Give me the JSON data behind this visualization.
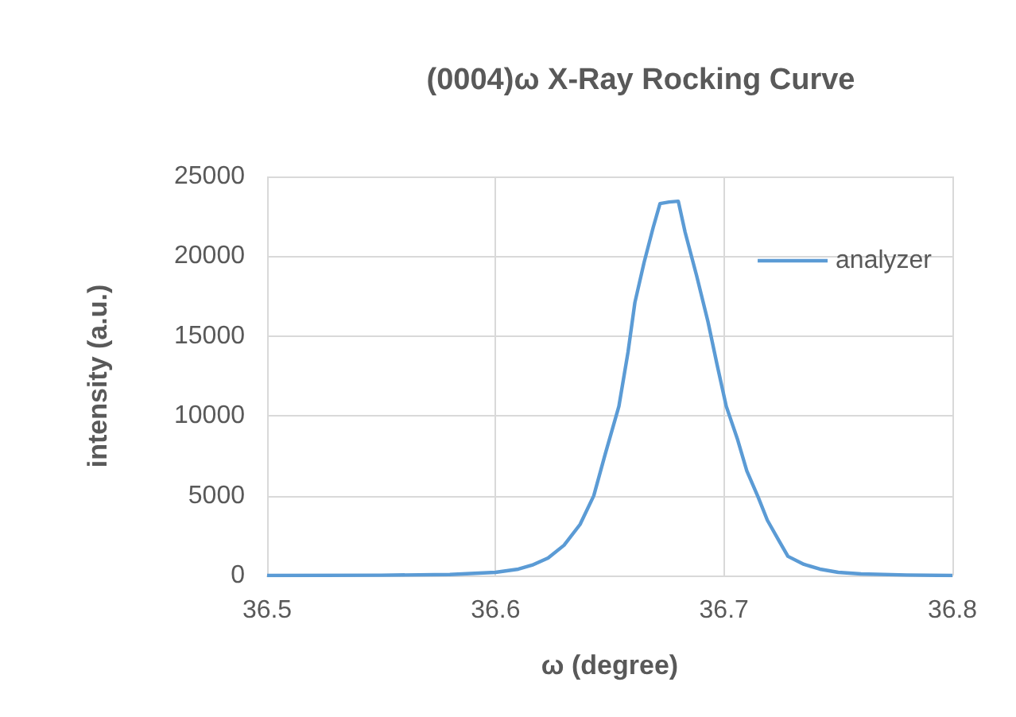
{
  "chart_data": {
    "type": "line",
    "title": "(0004)ω X-Ray Rocking Curve",
    "xlabel": "ω (degree)",
    "ylabel": "intensity (a.u.)",
    "xlim": [
      36.5,
      36.8
    ],
    "xticks": [
      36.5,
      36.6,
      36.7,
      36.8
    ],
    "ylim": [
      0,
      25000
    ],
    "yticks": [
      0,
      5000,
      10000,
      15000,
      20000,
      25000
    ],
    "grid": true,
    "legend": "top right",
    "marker": "none",
    "line_style": "solid",
    "series": [
      {
        "name": "analyzer",
        "color": "#5b9bd5",
        "x": [
          36.5,
          36.55,
          36.58,
          36.6,
          36.61,
          36.616,
          36.623,
          36.63,
          36.637,
          36.643,
          36.648,
          36.654,
          36.658,
          36.661,
          36.665,
          36.669,
          36.672,
          36.676,
          36.68,
          36.683,
          36.688,
          36.693,
          36.697,
          36.701,
          36.706,
          36.71,
          36.715,
          36.719,
          36.724,
          36.728,
          36.735,
          36.742,
          36.75,
          36.76,
          36.78,
          36.8
        ],
        "values": [
          0,
          20,
          60,
          200,
          400,
          650,
          1100,
          1900,
          3200,
          5000,
          7600,
          10600,
          14000,
          17100,
          19600,
          21800,
          23300,
          23400,
          23450,
          21500,
          18800,
          15900,
          13200,
          10600,
          8500,
          6550,
          4900,
          3460,
          2200,
          1200,
          700,
          400,
          200,
          100,
          30,
          0
        ]
      }
    ]
  }
}
